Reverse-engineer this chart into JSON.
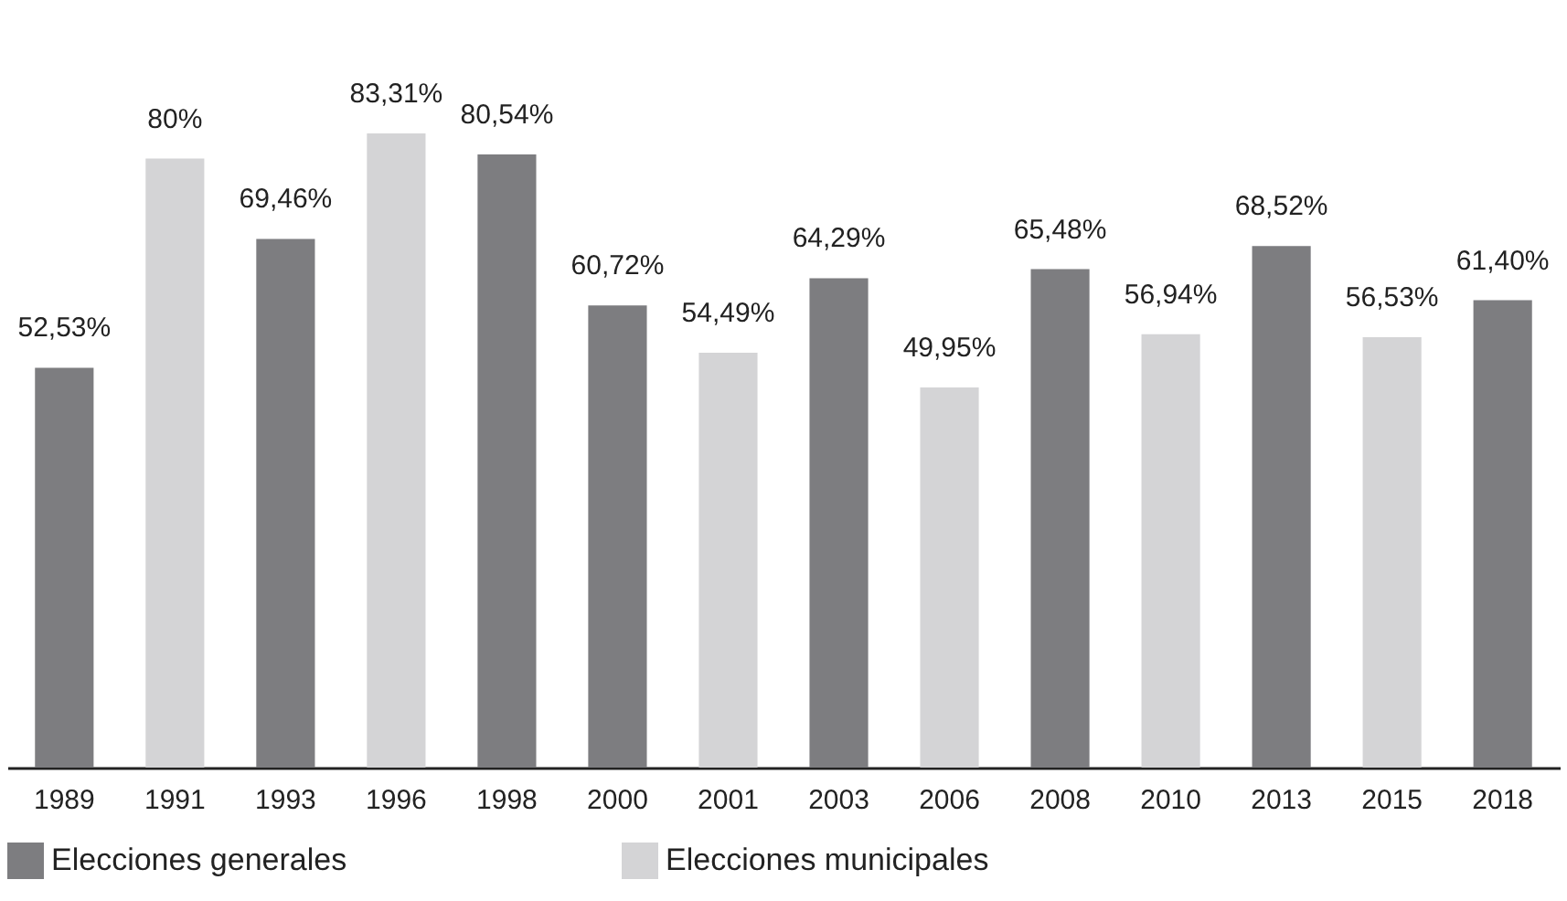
{
  "chart_data": {
    "type": "bar",
    "categories": [
      "1989",
      "1991",
      "1993",
      "1996",
      "1998",
      "2000",
      "2001",
      "2003",
      "2006",
      "2008",
      "2010",
      "2013",
      "2015",
      "2018"
    ],
    "series": [
      {
        "name": "Elecciones generales",
        "color": "#7d7d80",
        "values": [
          52.53,
          null,
          69.46,
          null,
          80.54,
          60.72,
          null,
          64.29,
          null,
          65.48,
          null,
          68.52,
          null,
          61.4
        ],
        "value_labels": [
          "52,53%",
          null,
          "69,46%",
          null,
          "80,54%",
          "60,72%",
          null,
          "64,29%",
          null,
          "65,48%",
          null,
          "68,52%",
          null,
          "61,40%"
        ]
      },
      {
        "name": "Elecciones municipales",
        "color": "#d4d4d6",
        "values": [
          null,
          80,
          null,
          83.31,
          null,
          null,
          54.49,
          null,
          49.95,
          null,
          56.94,
          null,
          56.53,
          null
        ],
        "value_labels": [
          null,
          "80%",
          null,
          "83,31%",
          null,
          null,
          "54,49%",
          null,
          "49,95%",
          null,
          "56,94%",
          null,
          "56,53%",
          null
        ]
      }
    ],
    "legend": "bottom",
    "grid": false
  }
}
